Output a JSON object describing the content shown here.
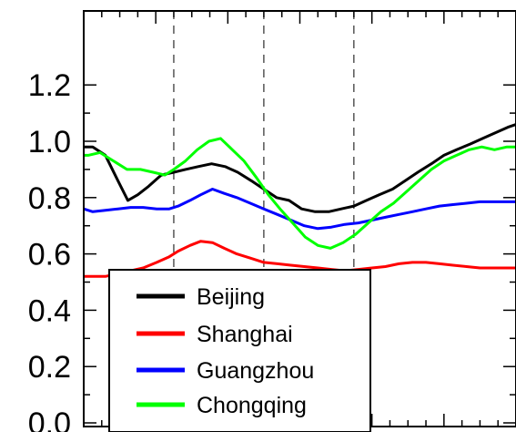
{
  "chart_data": {
    "type": "line",
    "title": "",
    "xlabel": "",
    "ylabel": "",
    "xlim": [
      0,
      48
    ],
    "ylim": [
      0.0,
      1.25
    ],
    "yticks": [
      "0.0",
      "0.2",
      "0.4",
      "0.6",
      "0.8",
      "1.0",
      "1.2"
    ],
    "ytick_values": [
      0.0,
      0.2,
      0.4,
      0.6,
      0.8,
      1.0,
      1.2
    ],
    "xticks_major": [
      0,
      8,
      16,
      24,
      32,
      40,
      48
    ],
    "xticks_minor": [
      2,
      4,
      6,
      10,
      12,
      14,
      18,
      20,
      22,
      26,
      28,
      30,
      34,
      36,
      38,
      42,
      44,
      46
    ],
    "vlines_dashed": [
      10,
      20,
      30
    ],
    "legend_placement": "bottom-left",
    "series": [
      {
        "name": "Beijing",
        "color": "#000000",
        "x": [
          0,
          1,
          2.4,
          3.8,
          4.9,
          6,
          7.2,
          8.6,
          10,
          11.3,
          12.7,
          14.2,
          15.7,
          17.1,
          18.6,
          20,
          21.4,
          22.8,
          24.2,
          25.7,
          27.2,
          28.6,
          30,
          31.4,
          32.8,
          34.3,
          35.7,
          37.1,
          38.6,
          40,
          41.4,
          42.9,
          44.3,
          45.7,
          47.1,
          48
        ],
        "values": [
          0.98,
          0.98,
          0.95,
          0.86,
          0.79,
          0.81,
          0.84,
          0.88,
          0.89,
          0.9,
          0.91,
          0.92,
          0.91,
          0.89,
          0.86,
          0.83,
          0.8,
          0.79,
          0.76,
          0.75,
          0.75,
          0.76,
          0.77,
          0.79,
          0.81,
          0.83,
          0.86,
          0.89,
          0.92,
          0.95,
          0.97,
          0.99,
          1.01,
          1.03,
          1.05,
          1.06
        ]
      },
      {
        "name": "Shanghai",
        "color": "#ff0000",
        "x": [
          0,
          1,
          2.4,
          3.8,
          5.2,
          6.6,
          8.1,
          9.5,
          10.5,
          11.8,
          13,
          14.3,
          15.6,
          17,
          18.5,
          20,
          21.5,
          23,
          24.5,
          26,
          27.5,
          29,
          30.5,
          32,
          33.5,
          35,
          36.5,
          38,
          39.5,
          41,
          42.5,
          44,
          45.5,
          47,
          48
        ],
        "values": [
          0.52,
          0.52,
          0.52,
          0.53,
          0.54,
          0.55,
          0.57,
          0.59,
          0.61,
          0.63,
          0.645,
          0.64,
          0.62,
          0.6,
          0.585,
          0.57,
          0.565,
          0.56,
          0.555,
          0.55,
          0.545,
          0.54,
          0.545,
          0.55,
          0.555,
          0.565,
          0.57,
          0.57,
          0.565,
          0.56,
          0.555,
          0.55,
          0.55,
          0.55,
          0.55
        ]
      },
      {
        "name": "Guangzhou",
        "color": "#0000ff",
        "x": [
          0,
          1,
          2.4,
          3.8,
          5.2,
          6.6,
          8.1,
          9.5,
          10.5,
          11.8,
          13,
          14.3,
          15.6,
          17,
          18.5,
          20,
          21.5,
          23,
          24.5,
          26,
          27.5,
          29,
          30.5,
          32,
          33.5,
          35,
          36.5,
          38,
          39.5,
          41,
          42.5,
          44,
          45.5,
          47,
          48
        ],
        "values": [
          0.76,
          0.75,
          0.755,
          0.76,
          0.765,
          0.765,
          0.76,
          0.76,
          0.77,
          0.79,
          0.81,
          0.83,
          0.815,
          0.8,
          0.78,
          0.76,
          0.74,
          0.72,
          0.7,
          0.69,
          0.695,
          0.705,
          0.71,
          0.72,
          0.73,
          0.74,
          0.75,
          0.76,
          0.77,
          0.775,
          0.78,
          0.785,
          0.785,
          0.785,
          0.785
        ]
      },
      {
        "name": "Chongqing",
        "color": "#00ff00",
        "x": [
          0,
          0.5,
          1.8,
          3.3,
          4.8,
          6.3,
          7.7,
          9,
          10,
          11.3,
          12.6,
          13.9,
          15.2,
          16.5,
          17.8,
          19.2,
          20.5,
          21.8,
          23.2,
          24.6,
          26,
          27.4,
          28.8,
          30.2,
          31.6,
          33,
          34.4,
          35.8,
          37.2,
          38.6,
          40,
          41.4,
          42.8,
          44.2,
          45.6,
          47,
          48
        ],
        "values": [
          0.95,
          0.95,
          0.96,
          0.93,
          0.9,
          0.9,
          0.89,
          0.88,
          0.9,
          0.93,
          0.97,
          1.0,
          1.01,
          0.97,
          0.93,
          0.87,
          0.81,
          0.76,
          0.71,
          0.66,
          0.63,
          0.62,
          0.64,
          0.67,
          0.71,
          0.75,
          0.78,
          0.82,
          0.86,
          0.9,
          0.93,
          0.95,
          0.97,
          0.98,
          0.97,
          0.98,
          0.98
        ]
      }
    ]
  }
}
